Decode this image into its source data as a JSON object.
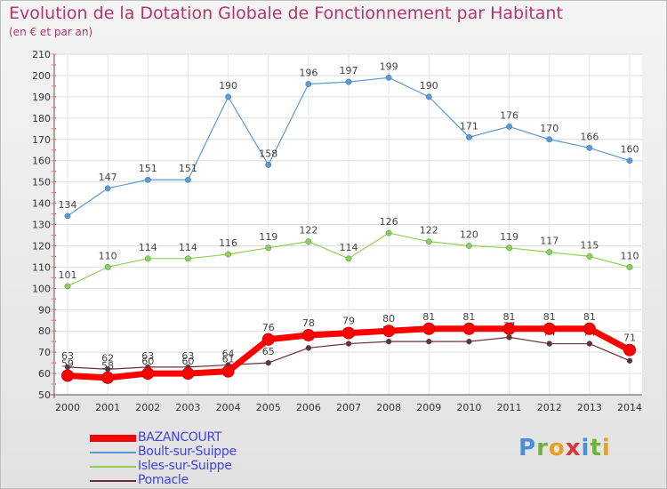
{
  "title": "Evolution de la Dotation Globale de Fonctionnement par Habitant",
  "subtitle": "(en € et par an)",
  "brand": {
    "letters": [
      "P",
      "r",
      "o",
      "x",
      "i",
      "t",
      "i"
    ],
    "colors": [
      "#4a90d9",
      "#6fb23a",
      "#e8a020",
      "#d9383a",
      "#4a90d9",
      "#6fb23a",
      "#e8a020"
    ]
  },
  "chart_data": {
    "type": "line",
    "title": "Evolution de la Dotation Globale de Fonctionnement par Habitant",
    "subtitle": "(en € et par an)",
    "xlabel": "",
    "ylabel": "",
    "ylim": [
      50,
      210
    ],
    "ytick_step": 10,
    "grid": true,
    "legend_position": "bottom-left",
    "x": [
      "2000",
      "2001",
      "2002",
      "2003",
      "2004",
      "2005",
      "2006",
      "2007",
      "2008",
      "2009",
      "2010",
      "2011",
      "2012",
      "2013",
      "2014"
    ],
    "yticks": [
      "50",
      "60",
      "70",
      "80",
      "90",
      "100",
      "110",
      "120",
      "130",
      "140",
      "150",
      "160",
      "170",
      "180",
      "190",
      "200",
      "210"
    ],
    "series": [
      {
        "name": "Boult-sur-Suippe",
        "color": "#5b9bd5",
        "values": [
          134,
          147,
          151,
          151,
          190,
          158,
          196,
          197,
          199,
          190,
          171,
          176,
          170,
          166,
          160
        ],
        "labels": [
          "134",
          "147",
          "151",
          "151",
          "190",
          "158",
          "196",
          "197",
          "199",
          "190",
          "171",
          "176",
          "170",
          "166",
          "160"
        ]
      },
      {
        "name": "Isles-sur-Suippe",
        "color": "#8fd14f",
        "values": [
          101,
          110,
          114,
          114,
          116,
          119,
          122,
          114,
          126,
          122,
          120,
          119,
          117,
          115,
          110
        ],
        "labels": [
          "101",
          "110",
          "114",
          "114",
          "116",
          "119",
          "122",
          "114",
          "126",
          "122",
          "120",
          "119",
          "117",
          "115",
          "110"
        ]
      },
      {
        "name": "Pomacle",
        "color": "#6b2f3a",
        "values": [
          63,
          62,
          63,
          63,
          64,
          65,
          72,
          74,
          75,
          75,
          75,
          77,
          74,
          74,
          66
        ],
        "labels": [
          "63",
          "62",
          "63",
          "63",
          "64",
          "65",
          "72",
          "74",
          "75",
          "75",
          "75",
          "77",
          "74",
          "74",
          "66"
        ]
      },
      {
        "name": "BAZANCOURT",
        "color": "#ff0000",
        "values": [
          59,
          58,
          60,
          60,
          61,
          76,
          78,
          79,
          80,
          81,
          81,
          81,
          81,
          81,
          71
        ],
        "labels": [
          "59",
          "58",
          "60",
          "60",
          "61",
          "76",
          "78",
          "79",
          "80",
          "81",
          "81",
          "81",
          "81",
          "81",
          "71"
        ]
      }
    ],
    "legend": [
      "BAZANCOURT",
      "Boult-sur-Suippe",
      "Isles-sur-Suippe",
      "Pomacle"
    ]
  }
}
